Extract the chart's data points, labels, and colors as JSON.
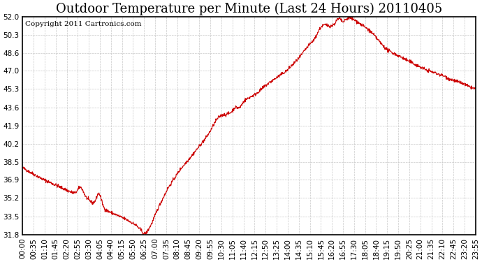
{
  "title": "Outdoor Temperature per Minute (Last 24 Hours) 20110405",
  "copyright_text": "Copyright 2011 Cartronics.com",
  "yticks": [
    31.8,
    33.5,
    35.2,
    36.9,
    38.5,
    40.2,
    41.9,
    43.6,
    45.3,
    47.0,
    48.6,
    50.3,
    52.0
  ],
  "xtick_labels": [
    "00:00",
    "00:35",
    "01:10",
    "01:45",
    "02:20",
    "02:55",
    "03:30",
    "04:05",
    "04:40",
    "05:15",
    "05:50",
    "06:25",
    "07:00",
    "07:35",
    "08:10",
    "08:45",
    "09:20",
    "09:55",
    "10:30",
    "11:05",
    "11:40",
    "12:15",
    "12:50",
    "13:25",
    "14:00",
    "14:35",
    "15:10",
    "15:45",
    "16:20",
    "16:55",
    "17:30",
    "18:05",
    "18:40",
    "19:15",
    "19:50",
    "20:25",
    "21:00",
    "21:35",
    "22:10",
    "22:45",
    "23:20",
    "23:55"
  ],
  "ymin": 31.8,
  "ymax": 52.0,
  "line_color": "#cc0000",
  "background_color": "#ffffff",
  "grid_color": "#c8c8c8",
  "title_fontsize": 13,
  "copyright_fontsize": 7.5,
  "tick_fontsize": 7.5,
  "keypoints_t": [
    0,
    30,
    60,
    90,
    120,
    150,
    175,
    200,
    215,
    230,
    250,
    270,
    300,
    330,
    360,
    380,
    385,
    395,
    410,
    430,
    460,
    500,
    540,
    570,
    595,
    615,
    630,
    645,
    660,
    675,
    690,
    705,
    720,
    740,
    760,
    780,
    800,
    820,
    840,
    860,
    880,
    900,
    915,
    930,
    945,
    960,
    975,
    990,
    1000,
    1010,
    1020,
    1030,
    1040,
    1055,
    1070,
    1085,
    1100,
    1120,
    1140,
    1160,
    1180,
    1200,
    1220,
    1240,
    1260,
    1280,
    1300,
    1320,
    1340,
    1360,
    1380,
    1400,
    1420,
    1440
  ],
  "keypoints_v": [
    38.0,
    37.5,
    37.0,
    36.6,
    36.2,
    35.8,
    35.5,
    35.2,
    34.9,
    34.6,
    34.3,
    34.0,
    33.6,
    33.2,
    32.7,
    32.1,
    31.85,
    32.0,
    32.8,
    34.2,
    36.0,
    37.8,
    39.2,
    40.3,
    41.2,
    42.0,
    42.5,
    43.0,
    43.5,
    44.0,
    43.7,
    44.2,
    44.5,
    44.8,
    45.3,
    45.8,
    46.2,
    46.6,
    47.0,
    47.6,
    48.2,
    49.0,
    49.5,
    50.0,
    50.5,
    51.0,
    51.4,
    51.7,
    51.9,
    51.7,
    51.5,
    51.8,
    51.9,
    51.7,
    51.4,
    51.1,
    50.8,
    50.2,
    49.5,
    48.9,
    48.6,
    48.3,
    48.0,
    47.7,
    47.4,
    47.1,
    46.9,
    46.7,
    46.5,
    46.2,
    46.0,
    45.8,
    45.5,
    45.3
  ]
}
